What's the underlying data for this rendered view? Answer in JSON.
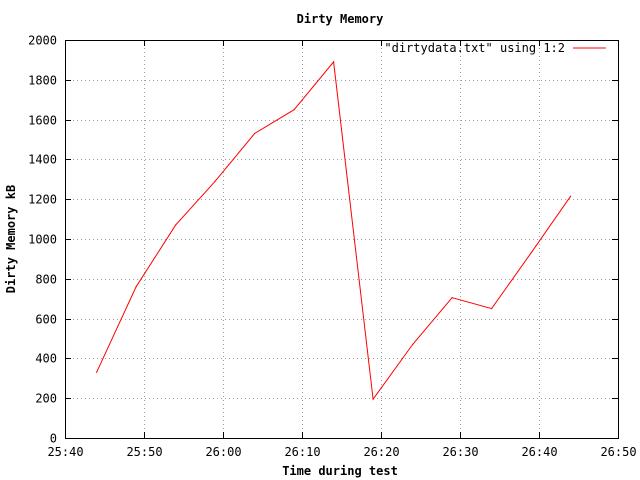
{
  "chart_data": {
    "type": "line",
    "title": "Dirty Memory",
    "xlabel": "Time during test",
    "ylabel": "Dirty Memory kB",
    "x_tick_labels": [
      "25:40",
      "25:50",
      "26:00",
      "26:10",
      "26:20",
      "26:30",
      "26:40",
      "26:50"
    ],
    "x_ticks_minutes": [
      0,
      10,
      20,
      30,
      40,
      50,
      60,
      70
    ],
    "xlim_minutes": [
      0,
      70
    ],
    "ylim": [
      0,
      2000
    ],
    "y_ticks": [
      0,
      200,
      400,
      600,
      800,
      1000,
      1200,
      1400,
      1600,
      1800,
      2000
    ],
    "grid": true,
    "legend_position": "top-right",
    "series": [
      {
        "name": "\"dirtydata.txt\" using 1:2",
        "color": "#ff0000",
        "x": [
          "25:44",
          "25:49",
          "25:54",
          "25:59",
          "26:04",
          "26:09",
          "26:14",
          "26:19",
          "26:24",
          "26:29",
          "26:34",
          "26:39",
          "26:44"
        ],
        "x_minutes": [
          4,
          9,
          14,
          19,
          24,
          29,
          34,
          39,
          44,
          49,
          54,
          59,
          64
        ],
        "values": [
          330,
          760,
          1070,
          1290,
          1530,
          1650,
          1890,
          195,
          470,
          705,
          650,
          930,
          1215
        ]
      }
    ]
  }
}
